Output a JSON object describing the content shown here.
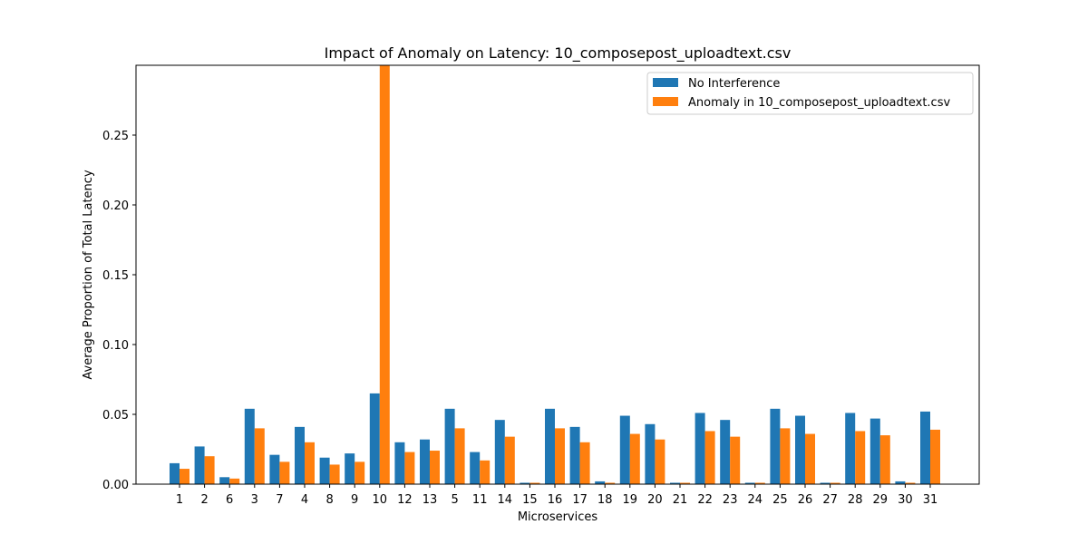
{
  "chart_data": {
    "type": "bar",
    "title": "Impact of Anomaly on Latency: 10_composepost_uploadtext.csv",
    "xlabel": "Microservices",
    "ylabel": "Average Proportion of Total Latency",
    "categories": [
      "1",
      "2",
      "6",
      "3",
      "7",
      "4",
      "8",
      "9",
      "10",
      "12",
      "13",
      "5",
      "11",
      "14",
      "15",
      "16",
      "17",
      "18",
      "19",
      "20",
      "21",
      "22",
      "23",
      "24",
      "25",
      "26",
      "27",
      "28",
      "29",
      "30",
      "31"
    ],
    "series": [
      {
        "name": "No Interference",
        "color": "#1f77b4",
        "values": [
          0.015,
          0.027,
          0.005,
          0.054,
          0.021,
          0.041,
          0.019,
          0.022,
          0.065,
          0.03,
          0.032,
          0.054,
          0.023,
          0.046,
          0.001,
          0.054,
          0.041,
          0.002,
          0.049,
          0.043,
          0.001,
          0.051,
          0.046,
          0.001,
          0.054,
          0.049,
          0.001,
          0.051,
          0.047,
          0.002,
          0.052
        ]
      },
      {
        "name": "Anomaly in 10_composepost_uploadtext.csv",
        "color": "#ff7f0e",
        "values": [
          0.011,
          0.02,
          0.004,
          0.04,
          0.016,
          0.03,
          0.014,
          0.016,
          0.3,
          0.023,
          0.024,
          0.04,
          0.017,
          0.034,
          0.001,
          0.04,
          0.03,
          0.001,
          0.036,
          0.032,
          0.001,
          0.038,
          0.034,
          0.001,
          0.04,
          0.036,
          0.001,
          0.038,
          0.035,
          0.001,
          0.039
        ]
      }
    ],
    "ylim": [
      0,
      0.3
    ],
    "yticks": [
      "0.00",
      "0.05",
      "0.10",
      "0.15",
      "0.20",
      "0.25"
    ],
    "grid": false,
    "legend_position": "top-right"
  }
}
